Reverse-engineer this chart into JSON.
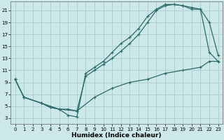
{
  "xlabel": "Humidex (Indice chaleur)",
  "bg_color": "#cce8e8",
  "grid_color": "#aacccc",
  "line_color": "#2a6b6b",
  "line1_x": [
    0,
    1,
    3,
    4,
    5,
    6,
    7,
    8,
    9,
    10,
    11,
    12,
    13,
    14,
    15,
    16,
    17,
    18,
    19,
    20,
    21,
    22,
    23
  ],
  "line1_y": [
    9.5,
    6.5,
    5.5,
    4.8,
    4.5,
    3.5,
    3.2,
    10.5,
    11.5,
    12.5,
    14.0,
    15.5,
    16.5,
    18.0,
    20.0,
    21.2,
    22.0,
    22.0,
    21.8,
    21.5,
    21.2,
    19.0,
    13.5
  ],
  "line2_x": [
    0,
    1,
    3,
    4,
    5,
    6,
    7,
    8,
    9,
    10,
    11,
    12,
    13,
    14,
    15,
    16,
    17,
    18,
    19,
    20,
    21,
    22,
    23
  ],
  "line2_y": [
    9.5,
    6.5,
    5.5,
    4.8,
    4.5,
    4.5,
    4.2,
    10.0,
    11.0,
    12.0,
    13.0,
    14.2,
    15.5,
    17.0,
    19.0,
    21.0,
    21.8,
    22.0,
    21.8,
    21.2,
    21.2,
    14.0,
    12.5
  ],
  "line3_x": [
    0,
    1,
    3,
    5,
    7,
    9,
    11,
    13,
    15,
    17,
    19,
    21,
    22,
    23
  ],
  "line3_y": [
    9.5,
    6.5,
    5.5,
    4.5,
    4.2,
    6.5,
    8.0,
    9.0,
    9.5,
    10.5,
    11.0,
    11.5,
    12.5,
    12.5
  ],
  "xlim": [
    -0.5,
    23.5
  ],
  "ylim": [
    2,
    22.5
  ],
  "xticks": [
    0,
    1,
    2,
    3,
    4,
    5,
    6,
    7,
    8,
    9,
    10,
    11,
    12,
    13,
    14,
    15,
    16,
    17,
    18,
    19,
    20,
    21,
    22,
    23
  ],
  "yticks": [
    3,
    5,
    7,
    9,
    11,
    13,
    15,
    17,
    19,
    21
  ]
}
